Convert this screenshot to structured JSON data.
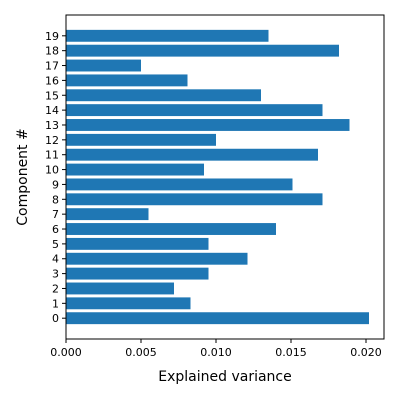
{
  "chart_data": {
    "type": "bar",
    "orientation": "horizontal",
    "title": "",
    "xlabel": "Explained variance",
    "ylabel": "Component #",
    "categories": [
      "0",
      "1",
      "2",
      "3",
      "4",
      "5",
      "6",
      "7",
      "8",
      "9",
      "10",
      "11",
      "12",
      "13",
      "14",
      "15",
      "16",
      "17",
      "18",
      "19"
    ],
    "values": [
      0.0202,
      0.0083,
      0.0072,
      0.0095,
      0.0121,
      0.0095,
      0.014,
      0.0055,
      0.0171,
      0.0151,
      0.0092,
      0.0168,
      0.01,
      0.0189,
      0.0171,
      0.013,
      0.0081,
      0.005,
      0.0182,
      0.0135
    ],
    "xlim": [
      0,
      0.0212
    ],
    "xticks": [
      "0.000",
      "0.005",
      "0.010",
      "0.015",
      "0.020"
    ],
    "xtick_values": [
      0,
      0.005,
      0.01,
      0.015,
      0.02
    ],
    "grid": false,
    "bar_color": "#1f77b4"
  }
}
